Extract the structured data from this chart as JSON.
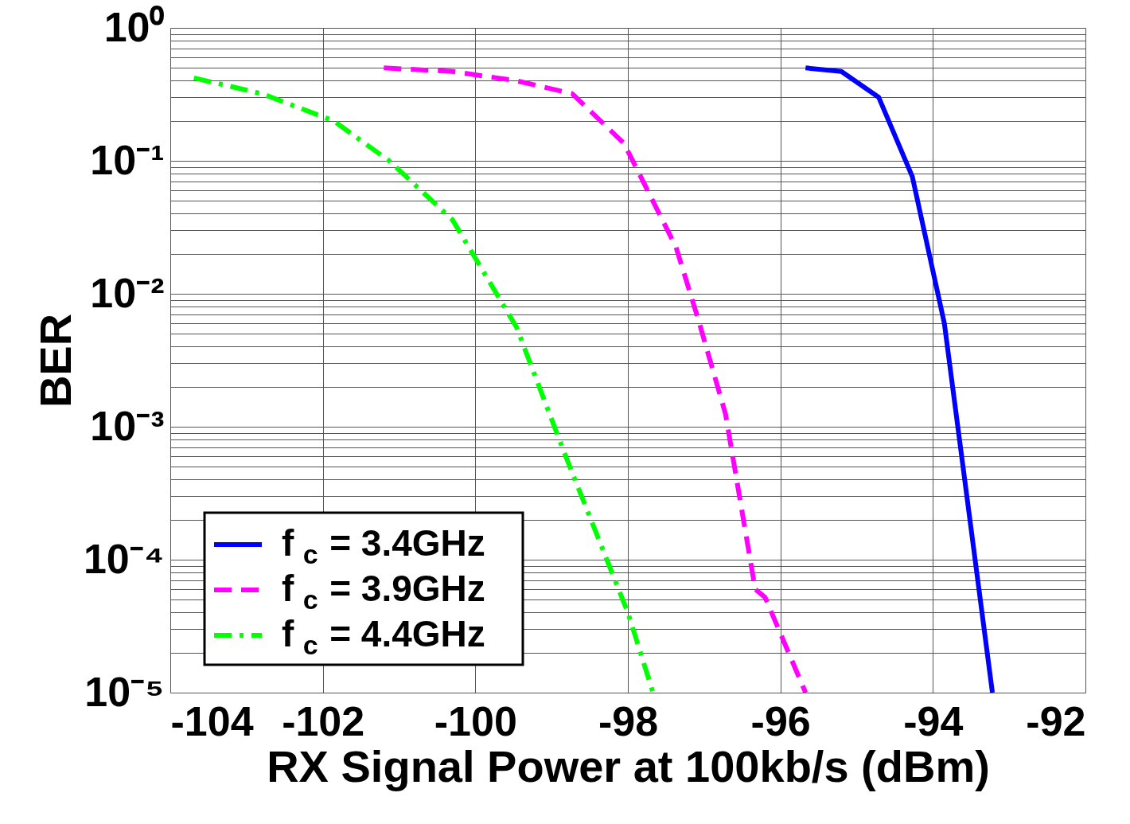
{
  "chart_data": {
    "type": "line",
    "xlabel": "RX Signal Power at 100kb/s (dBm)",
    "ylabel": "BER",
    "log": "y",
    "grid": true,
    "legend": "bottom left",
    "xlim": [
      -104,
      -92
    ],
    "xticks": [
      -104,
      -102,
      -100,
      -98,
      -96,
      -94,
      -92
    ],
    "ylim": [
      1e-05,
      1
    ],
    "yticks": [
      {
        "value": 1e-05,
        "label": "10⁻⁵"
      },
      {
        "value": 2e-05,
        "label": null
      },
      {
        "value": 3e-05,
        "label": null
      },
      {
        "value": 4e-05,
        "label": null
      },
      {
        "value": 5e-05,
        "label": null
      },
      {
        "value": 6e-05,
        "label": null
      },
      {
        "value": 7e-05,
        "label": null
      },
      {
        "value": 8e-05,
        "label": null
      },
      {
        "value": 9e-05,
        "label": null
      },
      {
        "value": 0.0001,
        "label": "10⁻⁴"
      },
      {
        "value": 0.0002,
        "label": null
      },
      {
        "value": 0.0003,
        "label": null
      },
      {
        "value": 0.0004,
        "label": null
      },
      {
        "value": 0.0005,
        "label": null
      },
      {
        "value": 0.0006,
        "label": null
      },
      {
        "value": 0.0007,
        "label": null
      },
      {
        "value": 0.0008,
        "label": null
      },
      {
        "value": 0.0009,
        "label": null
      },
      {
        "value": 0.001,
        "label": "10⁻³"
      },
      {
        "value": 0.002,
        "label": null
      },
      {
        "value": 0.003,
        "label": null
      },
      {
        "value": 0.004,
        "label": null
      },
      {
        "value": 0.005,
        "label": null
      },
      {
        "value": 0.006,
        "label": null
      },
      {
        "value": 0.007,
        "label": null
      },
      {
        "value": 0.008,
        "label": null
      },
      {
        "value": 0.009,
        "label": null
      },
      {
        "value": 0.01,
        "label": "10⁻²"
      },
      {
        "value": 0.02,
        "label": null
      },
      {
        "value": 0.03,
        "label": null
      },
      {
        "value": 0.04,
        "label": null
      },
      {
        "value": 0.05,
        "label": null
      },
      {
        "value": 0.06,
        "label": null
      },
      {
        "value": 0.07,
        "label": null
      },
      {
        "value": 0.08,
        "label": null
      },
      {
        "value": 0.09,
        "label": null
      },
      {
        "value": 0.1,
        "label": "10⁻¹"
      },
      {
        "value": 0.2,
        "label": null
      },
      {
        "value": 0.3,
        "label": null
      },
      {
        "value": 0.4,
        "label": null
      },
      {
        "value": 0.5,
        "label": null
      },
      {
        "value": 0.6,
        "label": null
      },
      {
        "value": 0.7,
        "label": null
      },
      {
        "value": 0.8,
        "label": null
      },
      {
        "value": 0.9,
        "label": null
      },
      {
        "value": 1,
        "label": "10⁰"
      }
    ],
    "series": [
      {
        "name": "f$_{c}$ = 3.4GHz",
        "color": "#0000ff",
        "line_style": "solid",
        "x": [
          -95.67,
          -95.2,
          -94.71,
          -94.27,
          -93.85,
          -93.22
        ],
        "values": [
          0.5,
          0.47,
          0.3,
          0.076,
          0.006,
          1e-05
        ]
      },
      {
        "name": "f$_{c}$ = 3.9GHz",
        "color": "#ff00ff",
        "line_style": "dashed",
        "x": [
          -101.2,
          -100.3,
          -99.46,
          -98.73,
          -98.05,
          -97.37,
          -97.08,
          -96.72,
          -96.33,
          -96.2,
          -95.67
        ],
        "values": [
          0.5,
          0.47,
          0.4,
          0.32,
          0.135,
          0.0225,
          0.0065,
          0.00125,
          6e-05,
          5.2e-05,
          1e-05
        ]
      },
      {
        "name": "f$_{c}$ = 4.4GHz",
        "color": "#00ff00",
        "line_style": "dashdot",
        "x": [
          -103.69,
          -102.8,
          -101.86,
          -101.13,
          -100.3,
          -99.46,
          -98.83,
          -98.0,
          -97.67
        ],
        "values": [
          0.42,
          0.32,
          0.2,
          0.1,
          0.036,
          0.0056,
          0.00063,
          4e-05,
          1e-05
        ]
      }
    ]
  }
}
